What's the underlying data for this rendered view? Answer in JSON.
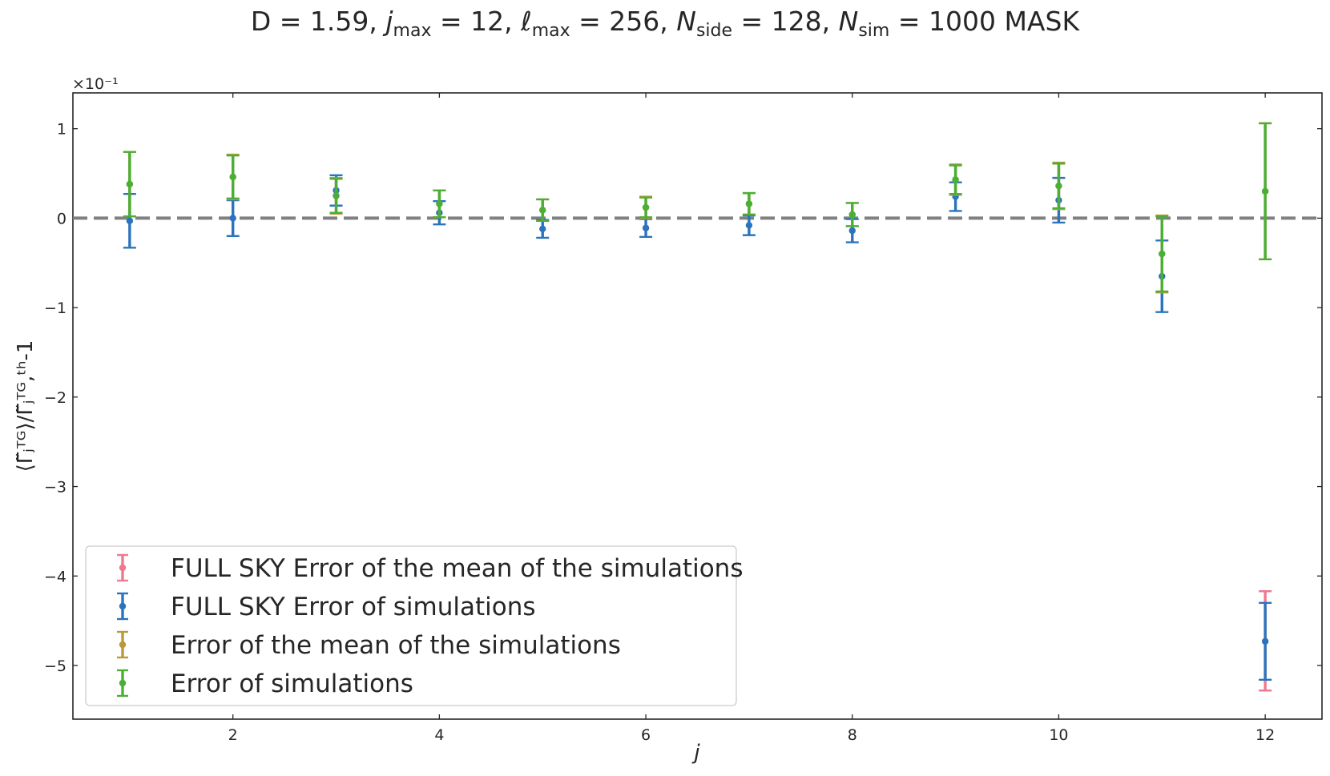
{
  "chart_data": {
    "type": "errorbar",
    "title": {
      "prefix": "D = 1.59,  ",
      "j": "j",
      "jsub": "max",
      "jval": " = 12,  ",
      "ell": "ℓ",
      "ellsub": "max",
      "ellval": " = 256,  ",
      "n1": "N",
      "n1sub": "side",
      "n1val": " = 128, ",
      "n2": "N",
      "n2sub": "sim",
      "n2val": " = 1000 MASK"
    },
    "xlabel": "j",
    "ylabel": "⟨Γ̃ⱼᵀᴳ⟩/Γ̃ⱼᵀᴳ,ᵗʰ-1",
    "y_offset_text": "×10⁻¹",
    "xlim": [
      0.45,
      12.55
    ],
    "ylim": [
      -5.6,
      1.4
    ],
    "xticks": [
      2,
      4,
      6,
      8,
      10,
      12
    ],
    "yticks": [
      1,
      0,
      -1,
      -2,
      -3,
      -4,
      -5
    ],
    "ytick_labels": [
      "1",
      "0",
      "−1",
      "−2",
      "−3",
      "−4",
      "−5"
    ],
    "xtick_labels": [
      "2",
      "4",
      "6",
      "8",
      "10",
      "12"
    ],
    "reference_line": 0,
    "colors": {
      "full_sky_mean_error": "#f07890",
      "full_sky_sim_error": "#2b74bd",
      "mean_error": "#b89a3a",
      "sim_error": "#4caf35",
      "reference": "#808080"
    },
    "series": [
      {
        "name": "FULL SKY Error of the mean of the simulations",
        "color_key": "full_sky_mean_error",
        "x": [
          12
        ],
        "y": [
          -4.73
        ],
        "err_low": [
          0.55
        ],
        "err_high": [
          0.56
        ]
      },
      {
        "name": "FULL SKY Error of simulations",
        "color_key": "full_sky_sim_error",
        "x": [
          1,
          2,
          3,
          4,
          5,
          6,
          7,
          8,
          9,
          10,
          11,
          12
        ],
        "y": [
          -0.03,
          0.0,
          0.31,
          0.06,
          -0.12,
          -0.11,
          -0.08,
          -0.14,
          0.24,
          0.2,
          -0.65,
          -4.73
        ],
        "err_low": [
          0.3,
          0.2,
          0.17,
          0.13,
          0.1,
          0.1,
          0.11,
          0.13,
          0.16,
          0.25,
          0.4,
          0.43
        ],
        "err_high": [
          0.3,
          0.2,
          0.17,
          0.13,
          0.1,
          0.1,
          0.11,
          0.13,
          0.16,
          0.25,
          0.4,
          0.43
        ]
      },
      {
        "name": "Error of the mean of the simulations",
        "color_key": "mean_error",
        "x": [
          1,
          2,
          3,
          4,
          5,
          6,
          7,
          8,
          9,
          10,
          11,
          12
        ],
        "y": [
          0.38,
          0.46,
          0.25,
          0.16,
          0.09,
          0.12,
          0.16,
          0.04,
          0.43,
          0.36,
          -0.4,
          0.3
        ],
        "err_low": [
          0.36,
          0.25,
          0.2,
          0.15,
          0.12,
          0.12,
          0.12,
          0.13,
          0.17,
          0.26,
          0.43,
          0.76
        ],
        "err_high": [
          0.36,
          0.25,
          0.2,
          0.15,
          0.12,
          0.12,
          0.12,
          0.13,
          0.17,
          0.26,
          0.43,
          0.76
        ]
      },
      {
        "name": "Error of simulations",
        "color_key": "sim_error",
        "x": [
          1,
          2,
          3,
          4,
          5,
          6,
          7,
          8,
          9,
          10,
          11,
          12
        ],
        "y": [
          0.38,
          0.46,
          0.25,
          0.16,
          0.09,
          0.12,
          0.16,
          0.04,
          0.43,
          0.36,
          -0.4,
          0.3
        ],
        "err_low": [
          0.36,
          0.24,
          0.19,
          0.15,
          0.12,
          0.11,
          0.12,
          0.13,
          0.16,
          0.25,
          0.42,
          0.76
        ],
        "err_high": [
          0.36,
          0.24,
          0.19,
          0.15,
          0.12,
          0.11,
          0.12,
          0.13,
          0.16,
          0.25,
          0.42,
          0.76
        ]
      }
    ],
    "legend_position": "lower-left"
  }
}
